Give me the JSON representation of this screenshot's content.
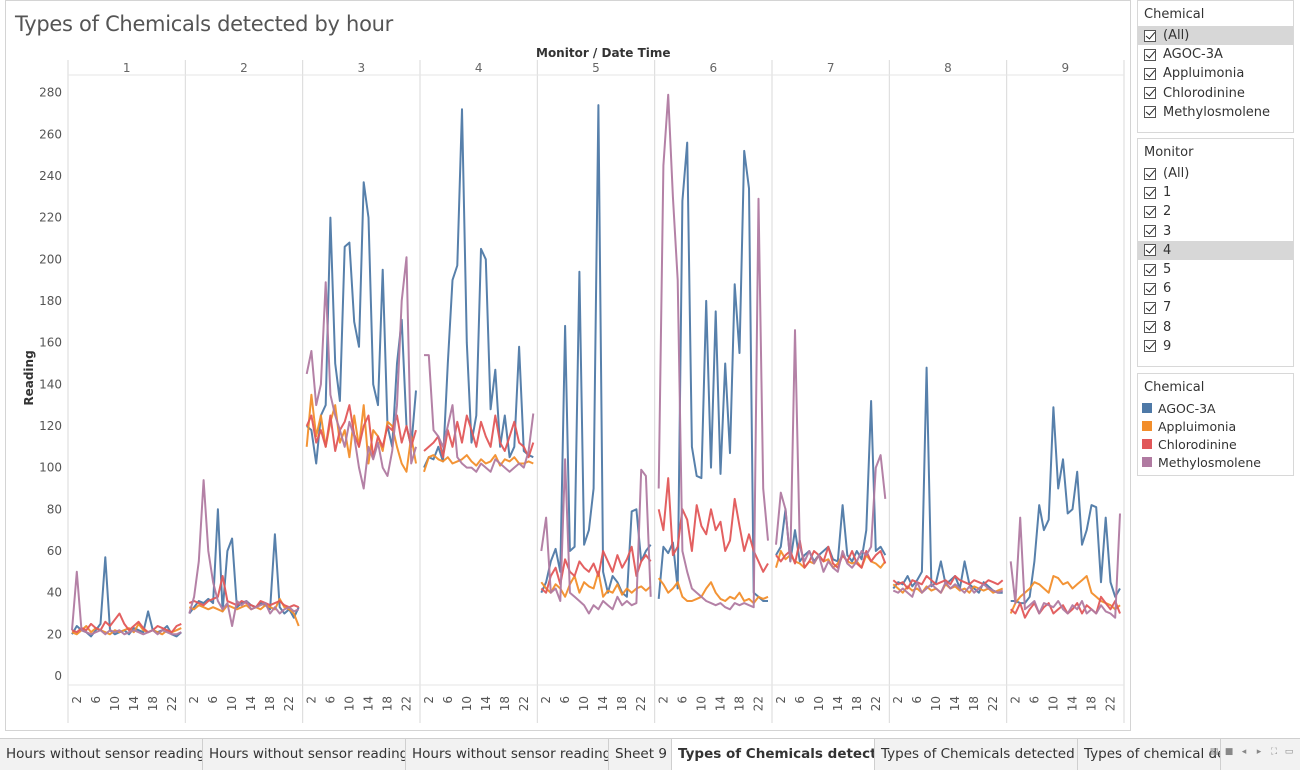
{
  "title": "Types of Chemicals detected by hour",
  "header_label": "Monitor  /  Date Time",
  "chart_data": {
    "type": "line",
    "title": "Types of Chemicals detected by hour",
    "ylabel": "Reading",
    "ylim": [
      0,
      290
    ],
    "yticks": [
      0,
      20,
      40,
      60,
      80,
      100,
      120,
      140,
      160,
      180,
      200,
      220,
      240,
      260,
      280
    ],
    "grid": false,
    "legend_placement": "right",
    "panels": [
      "1",
      "2",
      "3",
      "4",
      "5",
      "6",
      "7",
      "8",
      "9"
    ],
    "x_ticks": [
      "2",
      "6",
      "10",
      "14",
      "18",
      "22"
    ],
    "x_hours": [
      2,
      6,
      10,
      14,
      18,
      22
    ],
    "series": [
      {
        "name": "AGOC-3A",
        "color": "#4e79a7",
        "values": [
          [
            20,
            24,
            22,
            21,
            19,
            22,
            25,
            57,
            22,
            20,
            21,
            22,
            20,
            23,
            22,
            21,
            31,
            22,
            21,
            22,
            24,
            20,
            19,
            21
          ],
          [
            30,
            33,
            36,
            35,
            37,
            35,
            80,
            31,
            60,
            66,
            33,
            35,
            36,
            34,
            33,
            35,
            34,
            32,
            68,
            33,
            30,
            32,
            28,
            33
          ],
          [
            120,
            118,
            102,
            125,
            130,
            220,
            150,
            132,
            206,
            208,
            170,
            158,
            237,
            220,
            140,
            130,
            195,
            120,
            110,
            150,
            171,
            120,
            110,
            137
          ],
          [
            100,
            105,
            104,
            110,
            103,
            150,
            190,
            197,
            272,
            160,
            112,
            125,
            205,
            200,
            128,
            147,
            110,
            125,
            105,
            110,
            158,
            108,
            106,
            105
          ],
          [
            40,
            45,
            55,
            61,
            50,
            168,
            60,
            62,
            194,
            63,
            70,
            90,
            274,
            50,
            40,
            48,
            45,
            40,
            38,
            79,
            80,
            55,
            60,
            63
          ],
          [
            37,
            62,
            59,
            64,
            42,
            228,
            256,
            110,
            96,
            95,
            180,
            100,
            175,
            97,
            150,
            107,
            188,
            155,
            252,
            234,
            40,
            38,
            36,
            36
          ],
          [
            58,
            62,
            80,
            55,
            70,
            55,
            58,
            60,
            55,
            58,
            60,
            62,
            56,
            55,
            82,
            58,
            55,
            60,
            56,
            70,
            132,
            60,
            62,
            58
          ],
          [
            42,
            45,
            44,
            48,
            43,
            46,
            50,
            148,
            43,
            45,
            55,
            44,
            46,
            48,
            42,
            55,
            44,
            42,
            40,
            45,
            43,
            41,
            40,
            40
          ],
          [
            36,
            36,
            35,
            35,
            38,
            55,
            82,
            70,
            75,
            129,
            90,
            104,
            78,
            80,
            98,
            63,
            70,
            82,
            81,
            45,
            76,
            45,
            38,
            42
          ]
        ]
      },
      {
        "name": "Appluimonia",
        "color": "#f28e2b",
        "values": [
          [
            21,
            20,
            22,
            24,
            21,
            23,
            22,
            21,
            20,
            22,
            21,
            22,
            23,
            21,
            25,
            22,
            21,
            22,
            21,
            20,
            22,
            21,
            22,
            23
          ],
          [
            33,
            32,
            34,
            33,
            32,
            33,
            32,
            31,
            34,
            33,
            32,
            33,
            34,
            32,
            33,
            32,
            34,
            33,
            32,
            37,
            33,
            32,
            30,
            24
          ],
          [
            110,
            135,
            115,
            125,
            110,
            122,
            130,
            112,
            118,
            105,
            125,
            110,
            130,
            102,
            118,
            115,
            108,
            122,
            120,
            110,
            102,
            98,
            115,
            102
          ],
          [
            98,
            105,
            106,
            104,
            103,
            105,
            102,
            103,
            104,
            106,
            103,
            101,
            104,
            102,
            103,
            106,
            101,
            104,
            103,
            105,
            102,
            102,
            103,
            102
          ],
          [
            45,
            42,
            40,
            44,
            42,
            38,
            44,
            48,
            40,
            45,
            43,
            42,
            50,
            38,
            41,
            40,
            44,
            39,
            42,
            40,
            42,
            43,
            41,
            43
          ],
          [
            47,
            44,
            40,
            42,
            45,
            38,
            36,
            36,
            37,
            38,
            42,
            45,
            40,
            37,
            36,
            38,
            37,
            40,
            36,
            37,
            35,
            38,
            37,
            38
          ],
          [
            52,
            60,
            56,
            58,
            55,
            54,
            52,
            55,
            54,
            58,
            55,
            56,
            52,
            54,
            58,
            55,
            54,
            55,
            52,
            58,
            55,
            54,
            52,
            55
          ],
          [
            44,
            42,
            40,
            43,
            41,
            42,
            40,
            43,
            41,
            42,
            40,
            44,
            42,
            43,
            41,
            42,
            40,
            43,
            42,
            41,
            42,
            40,
            41,
            42
          ],
          [
            30,
            35,
            38,
            40,
            42,
            45,
            44,
            42,
            40,
            48,
            47,
            44,
            45,
            42,
            44,
            46,
            48,
            40,
            38,
            36,
            35,
            34,
            32,
            34
          ]
        ]
      },
      {
        "name": "Chlorodinine",
        "color": "#e15759",
        "values": [
          [
            22,
            21,
            23,
            22,
            25,
            23,
            22,
            26,
            24,
            27,
            30,
            25,
            22,
            24,
            26,
            23,
            21,
            22,
            24,
            23,
            22,
            21,
            24,
            25
          ],
          [
            35,
            36,
            35,
            34,
            36,
            37,
            38,
            48,
            36,
            35,
            34,
            36,
            35,
            34,
            33,
            36,
            35,
            34,
            35,
            36,
            34,
            33,
            34,
            33
          ],
          [
            120,
            125,
            112,
            118,
            110,
            125,
            108,
            118,
            122,
            130,
            116,
            110,
            120,
            125,
            105,
            115,
            110,
            120,
            118,
            125,
            112,
            120,
            110,
            118
          ],
          [
            108,
            110,
            112,
            115,
            105,
            118,
            110,
            122,
            112,
            125,
            118,
            110,
            122,
            115,
            110,
            125,
            112,
            108,
            115,
            122,
            112,
            110,
            105,
            112
          ],
          [
            42,
            40,
            48,
            52,
            44,
            56,
            50,
            48,
            55,
            52,
            50,
            54,
            48,
            60,
            55,
            50,
            58,
            52,
            56,
            62,
            48,
            55,
            58,
            55
          ],
          [
            80,
            70,
            95,
            58,
            62,
            80,
            75,
            60,
            82,
            72,
            68,
            80,
            70,
            74,
            60,
            65,
            85,
            72,
            60,
            68,
            60,
            55,
            50,
            54
          ],
          [
            58,
            55,
            58,
            60,
            54,
            65,
            52,
            55,
            60,
            58,
            55,
            62,
            54,
            52,
            58,
            55,
            60,
            54,
            52,
            60,
            55,
            58,
            60,
            54
          ],
          [
            46,
            44,
            45,
            42,
            46,
            45,
            44,
            48,
            46,
            44,
            45,
            46,
            44,
            48,
            46,
            45,
            44,
            46,
            45,
            44,
            46,
            45,
            44,
            46
          ],
          [
            32,
            30,
            35,
            28,
            32,
            35,
            30,
            33,
            35,
            30,
            32,
            34,
            30,
            32,
            35,
            30,
            34,
            32,
            30,
            38,
            35,
            32,
            36,
            30
          ]
        ]
      },
      {
        "name": "Methylosmolene",
        "color": "#b07aa1",
        "values": [
          [
            22,
            50,
            22,
            21,
            20,
            21,
            22,
            20,
            22,
            21,
            22,
            20,
            21,
            22,
            21,
            20,
            21,
            22,
            20,
            22,
            21,
            20,
            20,
            21
          ],
          [
            30,
            38,
            55,
            94,
            60,
            45,
            36,
            32,
            35,
            24,
            36,
            34,
            36,
            32,
            33,
            34,
            35,
            30,
            33,
            30,
            32,
            33,
            31,
            32
          ],
          [
            145,
            156,
            130,
            140,
            189,
            135,
            125,
            118,
            110,
            122,
            115,
            100,
            90,
            110,
            104,
            112,
            100,
            96,
            108,
            130,
            180,
            201,
            102,
            110
          ],
          [
            154,
            154,
            118,
            115,
            110,
            120,
            130,
            105,
            102,
            100,
            100,
            98,
            102,
            100,
            98,
            104,
            102,
            100,
            98,
            100,
            102,
            100,
            108,
            126
          ],
          [
            60,
            76,
            40,
            42,
            36,
            104,
            40,
            38,
            36,
            34,
            30,
            34,
            32,
            36,
            34,
            32,
            38,
            34,
            36,
            34,
            35,
            99,
            96,
            38
          ],
          [
            90,
            245,
            279,
            230,
            190,
            60,
            50,
            42,
            40,
            38,
            36,
            35,
            34,
            35,
            33,
            32,
            35,
            34,
            35,
            34,
            33,
            229,
            90,
            65
          ],
          [
            63,
            88,
            80,
            55,
            166,
            62,
            55,
            60,
            54,
            58,
            50,
            55,
            52,
            50,
            60,
            54,
            52,
            55,
            60,
            58,
            62,
            100,
            106,
            85
          ],
          [
            41,
            40,
            42,
            40,
            38,
            45,
            40,
            42,
            44,
            42,
            40,
            45,
            42,
            44,
            42,
            40,
            43,
            40,
            42,
            44,
            42,
            41,
            40,
            41
          ],
          [
            55,
            35,
            76,
            32,
            34,
            36,
            30,
            35,
            34,
            33,
            36,
            32,
            30,
            34,
            32,
            36,
            30,
            32,
            30,
            34,
            31,
            30,
            28,
            78
          ]
        ]
      }
    ]
  },
  "filters": [
    {
      "title": "Chemical",
      "items": [
        "(All)",
        "AGOC-3A",
        "Appluimonia",
        "Chlorodinine",
        "Methylosmolene"
      ],
      "highlighted": "(All)"
    },
    {
      "title": "Monitor",
      "items": [
        "(All)",
        "1",
        "2",
        "3",
        "4",
        "5",
        "6",
        "7",
        "8",
        "9"
      ],
      "highlighted": "4"
    }
  ],
  "legend": {
    "title": "Chemical",
    "items": [
      {
        "label": "AGOC-3A",
        "color": "#4e79a7"
      },
      {
        "label": "Appluimonia",
        "color": "#f28e2b"
      },
      {
        "label": "Chlorodinine",
        "color": "#e15759"
      },
      {
        "label": "Methylosmolene",
        "color": "#b07aa1"
      }
    ]
  },
  "tabs": [
    {
      "label": "Hours without sensor readings (...",
      "active": false
    },
    {
      "label": "Hours without sensor readings (...",
      "active": false
    },
    {
      "label": "Hours without sensor readings (...",
      "active": false
    },
    {
      "label": "Sheet 9",
      "active": false
    },
    {
      "label": "Types of Chemicals detected b...",
      "active": true
    },
    {
      "label": "Types of Chemicals detected by ...",
      "active": false
    },
    {
      "label": "Types of chemical det",
      "active": false
    }
  ],
  "tab_controls": [
    "first-sheet-icon",
    "filmstrip-icon",
    "prev-sheet-icon",
    "next-sheet-icon",
    "fit-icon",
    "presentation-icon"
  ]
}
